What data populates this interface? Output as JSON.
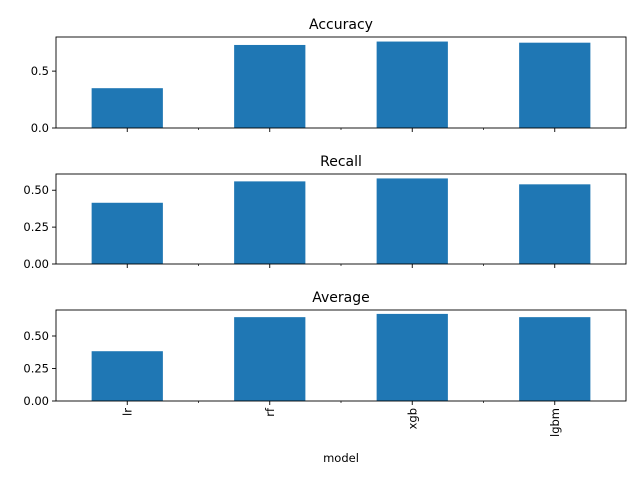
{
  "chart_data": [
    {
      "type": "bar",
      "title": "Accuracy",
      "categories": [
        "lr",
        "rf",
        "xgb",
        "lgbm"
      ],
      "values": [
        0.35,
        0.73,
        0.76,
        0.75
      ],
      "ylim": [
        0,
        0.8
      ],
      "yticks": [
        0.0,
        0.5
      ],
      "ytick_labels": [
        "0.0",
        "0.5"
      ],
      "show_xticklabels": false,
      "xlabel": ""
    },
    {
      "type": "bar",
      "title": "Recall",
      "categories": [
        "lr",
        "rf",
        "xgb",
        "lgbm"
      ],
      "values": [
        0.415,
        0.56,
        0.58,
        0.54
      ],
      "ylim": [
        0,
        0.61
      ],
      "yticks": [
        0.0,
        0.25,
        0.5
      ],
      "ytick_labels": [
        "0.00",
        "0.25",
        "0.50"
      ],
      "show_xticklabels": false,
      "xlabel": ""
    },
    {
      "type": "bar",
      "title": "Average",
      "categories": [
        "lr",
        "rf",
        "xgb",
        "lgbm"
      ],
      "values": [
        0.383,
        0.645,
        0.67,
        0.645
      ],
      "ylim": [
        0,
        0.7
      ],
      "yticks": [
        0.0,
        0.25,
        0.5
      ],
      "ytick_labels": [
        "0.00",
        "0.25",
        "0.50"
      ],
      "show_xticklabels": true,
      "xlabel": "model"
    }
  ],
  "colors": {
    "bar": "#1f77b4",
    "axis": "#000000",
    "background": "#ffffff"
  }
}
